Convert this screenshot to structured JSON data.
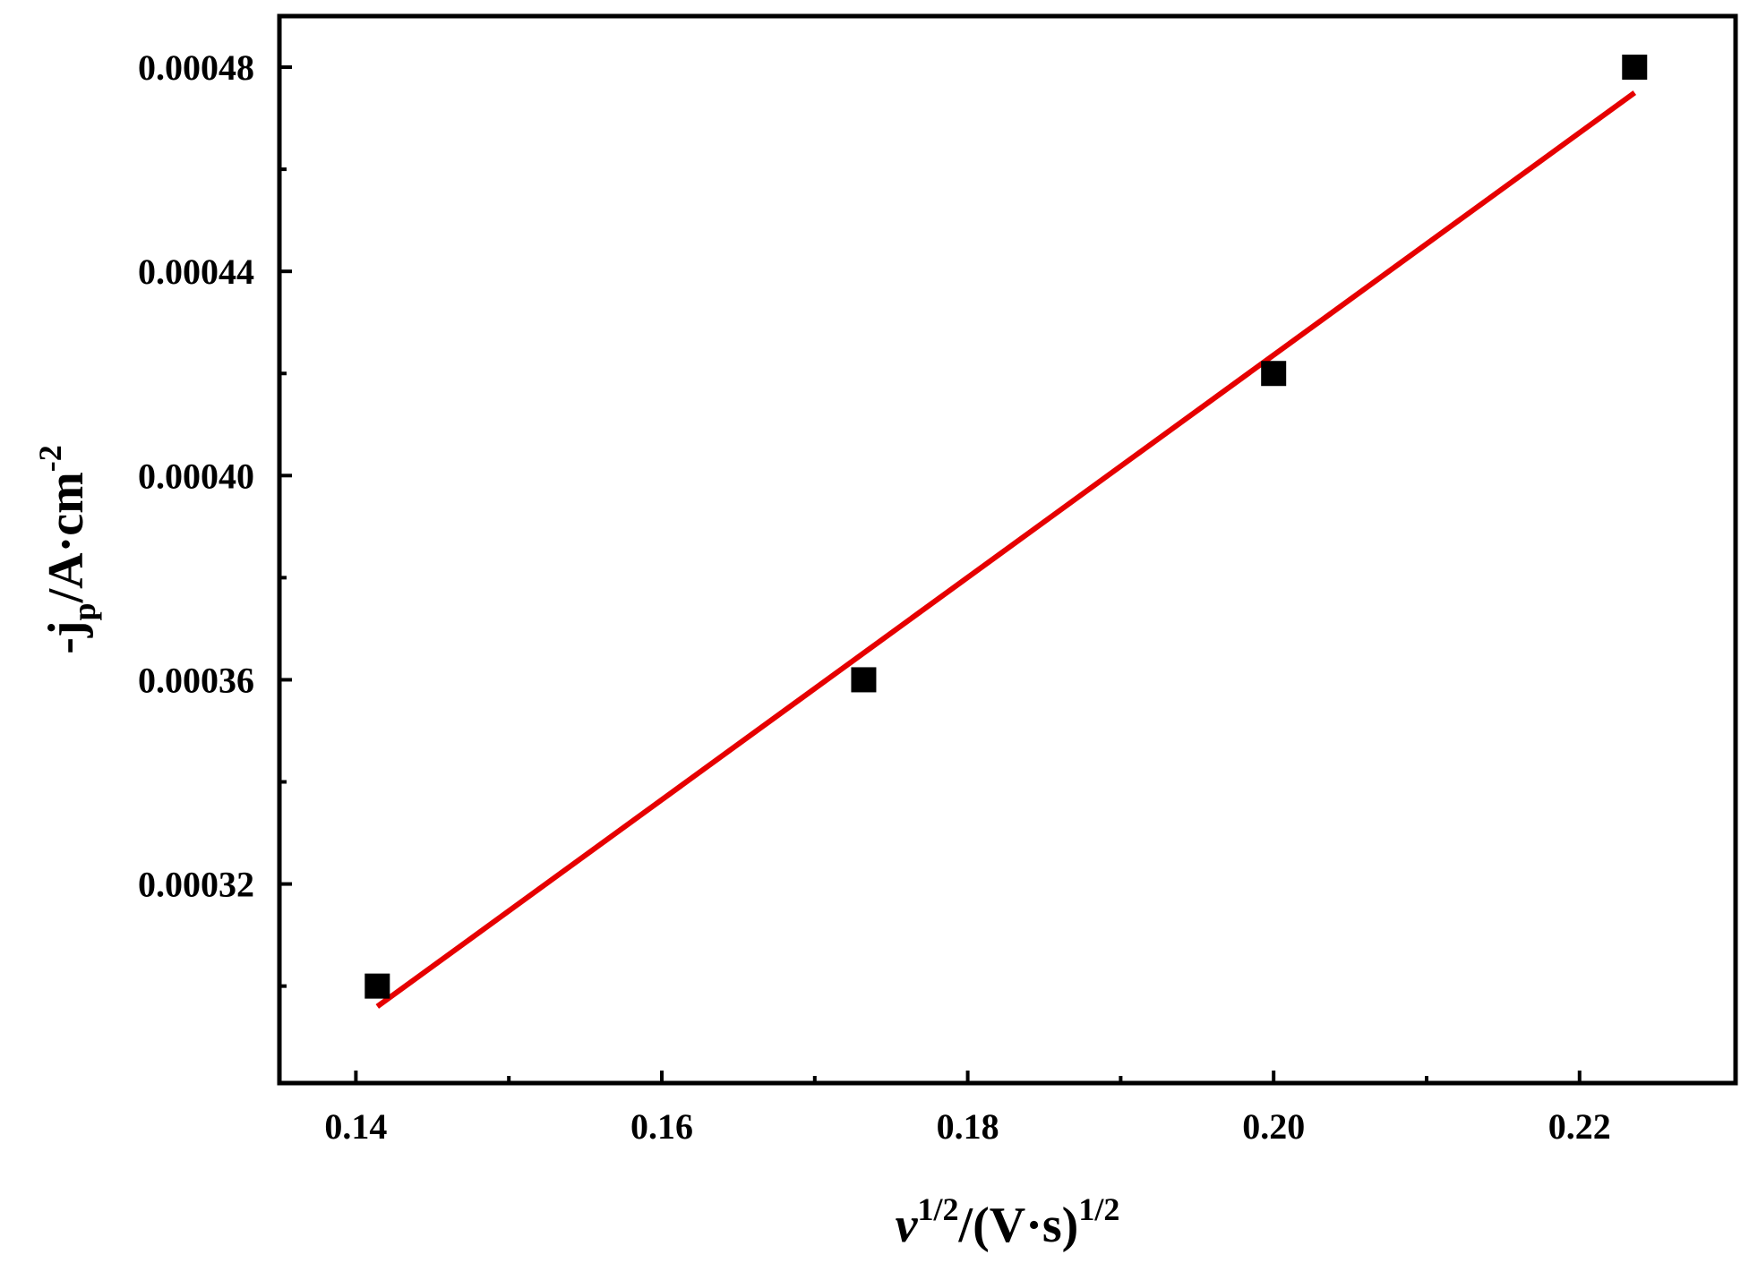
{
  "chart_data": {
    "type": "scatter",
    "title": "",
    "xlabel": {
      "var": "v",
      "exp1": "1/2",
      "unit": "/(V·s)",
      "exp2": "1/2"
    },
    "ylabel": {
      "prefix": "-j",
      "sub": "p",
      "unit": "/A·cm",
      "exp": "-2"
    },
    "xlim": [
      0.135,
      0.2302
    ],
    "ylim": [
      0.000281,
      0.00049
    ],
    "x_ticks": [
      {
        "value": 0.14,
        "label": "0.14"
      },
      {
        "value": 0.16,
        "label": "0.16"
      },
      {
        "value": 0.18,
        "label": "0.18"
      },
      {
        "value": 0.2,
        "label": "0.20"
      },
      {
        "value": 0.22,
        "label": "0.22"
      }
    ],
    "x_minor_ticks": [
      0.15,
      0.17,
      0.19,
      0.21
    ],
    "y_ticks": [
      {
        "value": 0.00032,
        "label": "0.00032"
      },
      {
        "value": 0.00036,
        "label": "0.00036"
      },
      {
        "value": 0.0004,
        "label": "0.00040"
      },
      {
        "value": 0.00044,
        "label": "0.00044"
      },
      {
        "value": 0.00048,
        "label": "0.00048"
      }
    ],
    "y_minor_ticks": [
      0.0003,
      0.00034,
      0.00038,
      0.00042,
      0.00046
    ],
    "grid": false,
    "series": [
      {
        "kind": "scatter",
        "marker": "square",
        "color": "#000000",
        "x": [
          0.1414,
          0.1732,
          0.2,
          0.2236
        ],
        "y": [
          0.0003,
          0.00036,
          0.00042,
          0.00048
        ]
      },
      {
        "kind": "fit-line",
        "color": "#e60000",
        "x": [
          0.1414,
          0.2236
        ],
        "y": [
          0.000296,
          0.000475
        ]
      }
    ]
  }
}
